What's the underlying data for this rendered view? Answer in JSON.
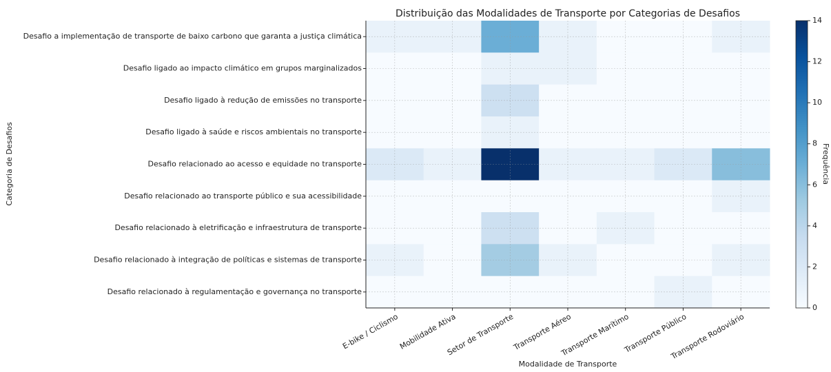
{
  "chart_data": {
    "type": "heatmap",
    "title": "Distribuição das Modalidades de Transporte por Categorias de Desafios",
    "x_label": "Modalidade de Transporte",
    "y_label": "Categoria de Desafios",
    "colorbar_label": "Frequência",
    "colormap": "Blues",
    "x": [
      "E-bike / Ciclismo",
      "Mobilidade Ativa",
      "Setor de Transporte",
      "Transporte Aéreo",
      "Transporte Marítimo",
      "Transporte Público",
      "Transporte Rodoviário"
    ],
    "y": [
      "Desafio a implementação de transporte de baixo carbono que garanta a justiça climática",
      "Desafio ligado ao impacto climático em grupos marginalizados",
      "Desafio ligado à redução de emissões no transporte",
      "Desafio ligado à saúde e riscos ambientais no transporte",
      "Desafio relacionado ao acesso e equidade no transporte",
      "Desafio relacionado ao transporte público e sua acessibilidade",
      "Desafio relacionado à eletrificação e infraestrutura de transporte",
      "Desafio relacionado à integração de políticas e sistemas de transporte",
      "Desafio relacionado à regulamentação e governança no transporte"
    ],
    "values": [
      [
        1,
        1,
        7,
        1,
        0,
        0,
        1
      ],
      [
        0,
        0,
        1,
        1,
        0,
        0,
        0
      ],
      [
        0,
        0,
        3,
        0,
        0,
        0,
        0
      ],
      [
        0,
        0,
        1,
        0,
        0,
        0,
        0
      ],
      [
        2,
        1,
        14,
        1,
        1,
        2,
        6
      ],
      [
        0,
        0,
        0,
        0,
        0,
        0,
        1
      ],
      [
        0,
        0,
        3,
        0,
        1,
        0,
        0
      ],
      [
        1,
        0,
        5,
        1,
        0,
        0,
        1
      ],
      [
        0,
        0,
        0,
        0,
        0,
        1,
        0
      ]
    ],
    "zlim": [
      0,
      14
    ],
    "zticks": [
      0,
      2,
      4,
      6,
      8,
      10,
      12,
      14
    ],
    "grid": true
  }
}
